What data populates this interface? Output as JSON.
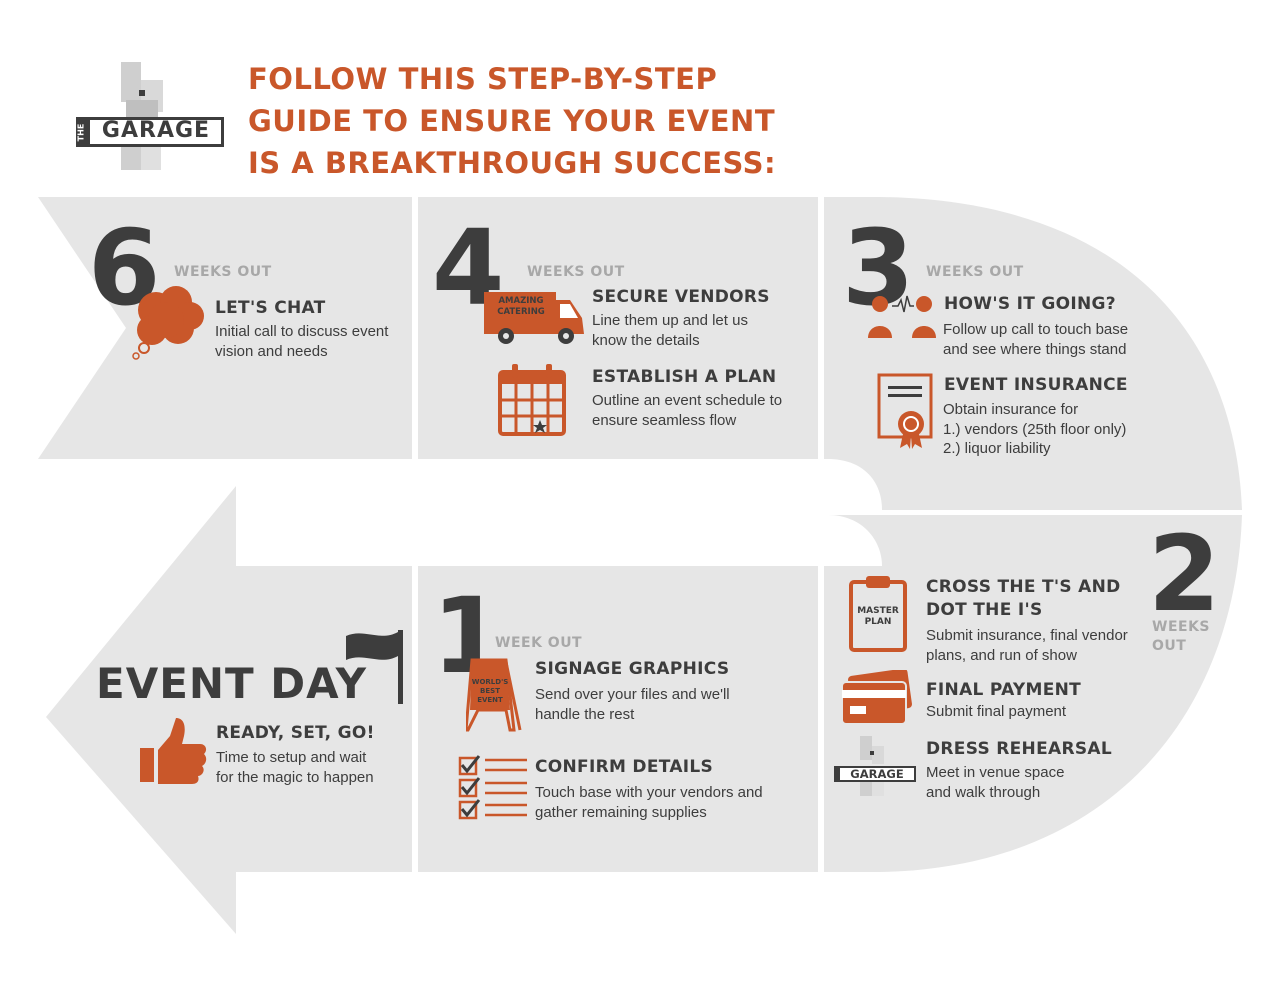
{
  "brand": {
    "the": "THE",
    "name": "GARAGE"
  },
  "headline": [
    "FOLLOW THIS STEP-BY-STEP",
    "GUIDE TO ENSURE YOUR EVENT",
    "IS A BREAKTHROUGH SUCCESS:"
  ],
  "colors": {
    "accent": "#c9572a",
    "dark": "#3d3d3d",
    "panel": "#e6e6e6",
    "muted": "#a8a8a8"
  },
  "steps": {
    "six": {
      "number": "6",
      "when": "WEEKS OUT",
      "items": [
        {
          "title": "LET'S CHAT",
          "desc": "Initial call to discuss event\nvision and needs",
          "icon": "thought-bubble-icon"
        }
      ]
    },
    "four": {
      "number": "4",
      "when": "WEEKS OUT",
      "items": [
        {
          "title": "SECURE VENDORS",
          "desc": "Line them up and let us\nknow the details",
          "icon": "catering-van-icon",
          "icon_text": [
            "AMAZING",
            "CATERING"
          ]
        },
        {
          "title": "ESTABLISH A PLAN",
          "desc": "Outline an event schedule to\nensure seamless flow",
          "icon": "calendar-icon"
        }
      ]
    },
    "three": {
      "number": "3",
      "when": "WEEKS OUT",
      "items": [
        {
          "title": "HOW'S IT GOING?",
          "desc": "Follow up call to touch base\nand see where things stand",
          "icon": "people-call-icon"
        },
        {
          "title": "EVENT INSURANCE",
          "desc": "Obtain insurance for\n1.) vendors (25th floor only)\n2.) liquor liability",
          "icon": "certificate-icon"
        }
      ]
    },
    "two": {
      "number": "2",
      "when_line1": "WEEKS",
      "when_line2": "OUT",
      "items": [
        {
          "title_line1": "CROSS THE T'S AND",
          "title_line2": "DOT THE I'S",
          "desc": "Submit insurance, final vendor\nplans, and run of show",
          "icon": "clipboard-icon",
          "icon_text": [
            "MASTER",
            "PLAN"
          ]
        },
        {
          "title": "FINAL PAYMENT",
          "desc": "Submit final payment",
          "icon": "credit-card-icon"
        },
        {
          "title": "DRESS REHEARSAL",
          "desc": "Meet in venue space\nand walk through",
          "icon": "garage-logo-icon"
        }
      ]
    },
    "one": {
      "number": "1",
      "when": "WEEK OUT",
      "items": [
        {
          "title": "SIGNAGE GRAPHICS",
          "desc": "Send over your files and we'll\nhandle the rest",
          "icon": "sign-board-icon",
          "icon_text": [
            "WORLD'S",
            "BEST",
            "EVENT"
          ]
        },
        {
          "title": "CONFIRM DETAILS",
          "desc": "Touch base with your vendors and\ngather remaining supplies",
          "icon": "checklist-icon"
        }
      ]
    },
    "event_day": {
      "title": "EVENT DAY",
      "items": [
        {
          "title": "READY, SET, GO!",
          "desc": "Time to setup and wait\nfor the magic to happen",
          "icon": "thumbs-up-icon"
        }
      ]
    }
  }
}
